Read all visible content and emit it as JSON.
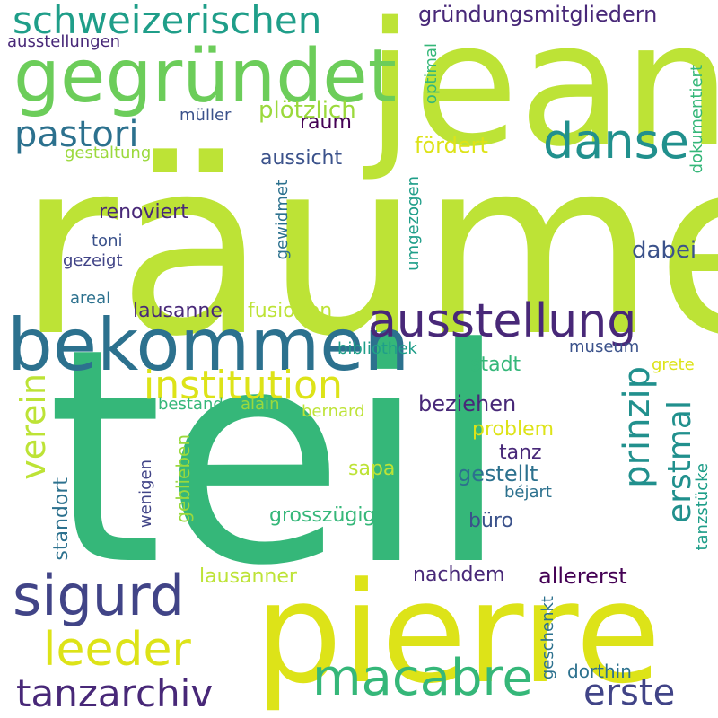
{
  "words": {
    "raume": "räume",
    "teil": "teil",
    "jean": "jean",
    "pierre": "pierre",
    "bekommen": "bekommen",
    "gegrundet": "gegründet",
    "ausstellung": "ausstellung",
    "danse": "danse",
    "sigurd": "sigurd",
    "schweizerischen": "schweizerischen",
    "macabre": "macabre",
    "leeder": "leeder",
    "tanzarchiv": "tanzarchiv",
    "institution": "institution",
    "pastori": "pastori",
    "erste": "erste",
    "prinzip": "prinzip",
    "erstmal": "erstmal",
    "verein": "verein",
    "grundungsmitgliedern": "gründungsmitgliedern",
    "ausstellungen": "ausstellungen",
    "optimal": "optimal",
    "dokumentiert": "dokumentiert",
    "plotzlich": "plötzlich",
    "muller": "müller",
    "raum": "raum",
    "gestaltung": "gestaltung",
    "fordert": "fördert",
    "aussicht": "aussicht",
    "gewidmet": "gewidmet",
    "umgezogen": "umgezogen",
    "renoviert": "renoviert",
    "toni": "toni",
    "gezeigt": "gezeigt",
    "dabei": "dabei",
    "areal": "areal",
    "lausanne": "lausanne",
    "fusionen": "fusionen",
    "bibliothek": "bibliothek",
    "museum": "museum",
    "stadt": "stadt",
    "grete": "grete",
    "bestand": "bestand",
    "alain": "alain",
    "bernard": "bernard",
    "beziehen": "beziehen",
    "problem": "problem",
    "tanz": "tanz",
    "gestellt": "gestellt",
    "sapa": "sapa",
    "bejart": "béjart",
    "wenigen": "wenigen",
    "geblieben": "geblieben",
    "standort": "standort",
    "tanzstucke": "tanzstücke",
    "grosszugig": "grosszügig",
    "buro": "büro",
    "lausanner": "lausanner",
    "nachdem": "nachdem",
    "allererst": "allererst",
    "geschenkt": "geschenkt",
    "dorthin": "dorthin"
  },
  "palette": {
    "yellowgreen": "#bde336",
    "lime": "#9bd93c",
    "yellow": "#dde318",
    "teal": "#21908d",
    "seagreen": "#35b779",
    "green": "#6ccd5a",
    "blue": "#2c718e",
    "steel": "#31688e",
    "navy": "#3b528b",
    "indigo": "#414487",
    "purple": "#482878",
    "deeppurple": "#440154",
    "cyan": "#1f9e89"
  }
}
